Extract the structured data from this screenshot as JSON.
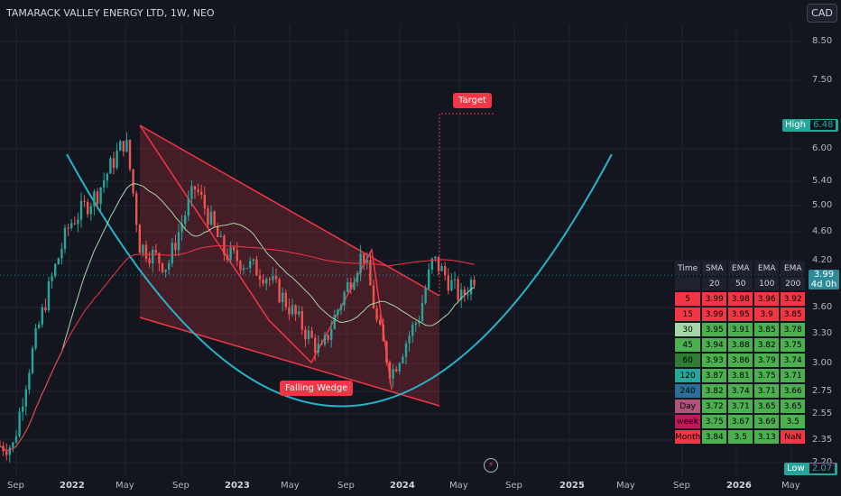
{
  "header": {
    "title": "TAMARACK VALLEY ENERGY LTD, 1W, NEO",
    "currency": "CAD"
  },
  "price_axis": {
    "ticks": [
      "8.50",
      "7.50",
      "6.00",
      "5.40",
      "5.00",
      "4.60",
      "4.20",
      "3.60",
      "3.30",
      "3.00",
      "2.75",
      "2.55",
      "2.35",
      "2.20"
    ]
  },
  "time_axis": {
    "ticks": [
      {
        "label": "Sep",
        "bold": false
      },
      {
        "label": "2022",
        "bold": true
      },
      {
        "label": "May",
        "bold": false
      },
      {
        "label": "Sep",
        "bold": false
      },
      {
        "label": "2023",
        "bold": true
      },
      {
        "label": "May",
        "bold": false
      },
      {
        "label": "Sep",
        "bold": false
      },
      {
        "label": "2024",
        "bold": true
      },
      {
        "label": "May",
        "bold": false
      },
      {
        "label": "Sep",
        "bold": false
      },
      {
        "label": "2025",
        "bold": true
      },
      {
        "label": "May",
        "bold": false
      },
      {
        "label": "Sep",
        "bold": false
      },
      {
        "label": "2026",
        "bold": true
      },
      {
        "label": "May",
        "bold": false
      }
    ]
  },
  "markers": {
    "high_label": "High",
    "high_value": "6.48",
    "low_label": "Low",
    "low_value": "2.07",
    "last_price": "3.99",
    "countdown": "4d 0h"
  },
  "annotations": {
    "target": "Target",
    "pattern": "Falling Wedge"
  },
  "colors": {
    "up": "#26a69a",
    "down": "#ef5350",
    "wedge": "#f23645",
    "arc": "#26b3c9",
    "sma": "#a5d6a7",
    "ema200": "#f23645"
  },
  "ma_table": {
    "headers": [
      "Time",
      "SMA",
      "EMA",
      "EMA",
      "EMA"
    ],
    "periods": [
      "",
      "20",
      "50",
      "100",
      "200"
    ],
    "rows": [
      {
        "tf": "5",
        "vals": [
          "3.99",
          "3.98",
          "3.96",
          "3.92"
        ],
        "c": "#f23645",
        "vc": [
          "#f23645",
          "#f23645",
          "#f23645",
          "#f23645"
        ]
      },
      {
        "tf": "15",
        "vals": [
          "3.99",
          "3.95",
          "3.9",
          "3.85"
        ],
        "c": "#f23645",
        "vc": [
          "#f23645",
          "#f23645",
          "#f23645",
          "#f23645"
        ]
      },
      {
        "tf": "30",
        "vals": [
          "3.95",
          "3.91",
          "3.85",
          "3.78"
        ],
        "c": "#a5d6a7",
        "vc": [
          "#4caf50",
          "#4caf50",
          "#4caf50",
          "#4caf50"
        ]
      },
      {
        "tf": "45",
        "vals": [
          "3.94",
          "3.88",
          "3.82",
          "3.75"
        ],
        "c": "#4caf50",
        "vc": [
          "#4caf50",
          "#4caf50",
          "#4caf50",
          "#4caf50"
        ]
      },
      {
        "tf": "60",
        "vals": [
          "3.93",
          "3.86",
          "3.79",
          "3.74"
        ],
        "c": "#2e7d32",
        "vc": [
          "#4caf50",
          "#4caf50",
          "#4caf50",
          "#4caf50"
        ]
      },
      {
        "tf": "120",
        "vals": [
          "3.87",
          "3.81",
          "3.75",
          "3.71"
        ],
        "c": "#26a69a",
        "vc": [
          "#4caf50",
          "#4caf50",
          "#4caf50",
          "#4caf50"
        ]
      },
      {
        "tf": "240",
        "vals": [
          "3.82",
          "3.74",
          "3.71",
          "3.66"
        ],
        "c": "#2a6f97",
        "vc": [
          "#4caf50",
          "#4caf50",
          "#4caf50",
          "#4caf50"
        ]
      },
      {
        "tf": "Day",
        "vals": [
          "3.72",
          "3.71",
          "3.65",
          "3.65"
        ],
        "c": "#b0557a",
        "vc": [
          "#4caf50",
          "#4caf50",
          "#4caf50",
          "#4caf50"
        ]
      },
      {
        "tf": "week",
        "vals": [
          "3.75",
          "3.67",
          "3.69",
          "3.5"
        ],
        "c": "#c2185b",
        "vc": [
          "#4caf50",
          "#4caf50",
          "#4caf50",
          "#4caf50"
        ]
      },
      {
        "tf": "Month",
        "vals": [
          "3.84",
          "3.5",
          "3.13",
          "NaN"
        ],
        "c": "#f23645",
        "vc": [
          "#4caf50",
          "#4caf50",
          "#4caf50",
          "#f23645"
        ]
      }
    ]
  },
  "chart_data": {
    "type": "candlestick",
    "title": "TAMARACK VALLEY ENERGY LTD, 1W, NEO",
    "ylim": [
      2.07,
      9.0
    ],
    "scale": "log",
    "close_series_approx": [
      {
        "date": "2021-09",
        "close": 2.3
      },
      {
        "date": "2021-11",
        "close": 3.5
      },
      {
        "date": "2022-01",
        "close": 4.7
      },
      {
        "date": "2022-03",
        "close": 5.2
      },
      {
        "date": "2022-05",
        "close": 6.2
      },
      {
        "date": "2022-06",
        "close": 4.4
      },
      {
        "date": "2022-08",
        "close": 4.1
      },
      {
        "date": "2022-10",
        "close": 5.3
      },
      {
        "date": "2022-12",
        "close": 4.3
      },
      {
        "date": "2023-03",
        "close": 4.0
      },
      {
        "date": "2023-06",
        "close": 3.3
      },
      {
        "date": "2023-07",
        "close": 3.1
      },
      {
        "date": "2023-09",
        "close": 3.9
      },
      {
        "date": "2023-10",
        "close": 4.3
      },
      {
        "date": "2023-11",
        "close": 3.4
      },
      {
        "date": "2023-12",
        "close": 2.9
      },
      {
        "date": "2024-02",
        "close": 3.5
      },
      {
        "date": "2024-03",
        "close": 4.2
      },
      {
        "date": "2024-05",
        "close": 3.7
      },
      {
        "date": "2024-06",
        "close": 3.99
      }
    ],
    "high": 6.48,
    "low": 2.07,
    "last": 3.99
  }
}
